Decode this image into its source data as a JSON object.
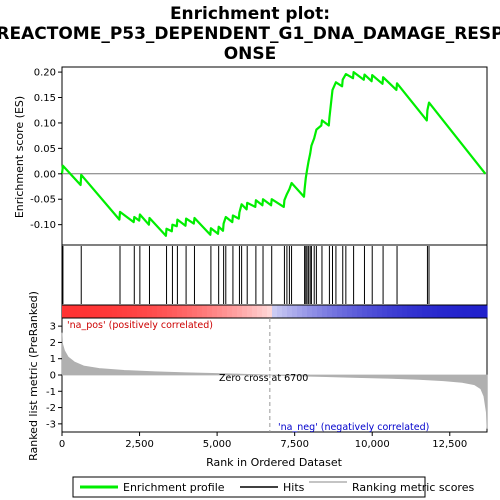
{
  "chart_data": {
    "type": "line",
    "title_lines": [
      "Enrichment plot:",
      "REACTOME_P53_DEPENDENT_G1_DNA_DAMAGE_RESP",
      "ONSE"
    ],
    "xlabel": "Rank in Ordered Dataset",
    "ylabel_top": "Enrichment score (ES)",
    "ylabel_bottom": "Ranked list metric (PreRanked)",
    "xlim": [
      0,
      13700
    ],
    "ylim_top": [
      -0.14,
      0.21
    ],
    "ylim_bottom": [
      -3.5,
      3.5
    ],
    "x_ticks": [
      0,
      2500,
      5000,
      7500,
      10000,
      12500
    ],
    "x_tick_labels": [
      "0",
      "2,500",
      "5,000",
      "7,500",
      "10,000",
      "12,500"
    ],
    "y_ticks_top": [
      -0.1,
      -0.05,
      0.0,
      0.05,
      0.1,
      0.15,
      0.2
    ],
    "y_tick_labels_top": [
      "-0.10",
      "-0.05",
      "0.00",
      "0.05",
      "0.10",
      "0.15",
      "0.20"
    ],
    "y_ticks_bottom": [
      -3,
      -2,
      -1,
      0,
      1,
      2,
      3
    ],
    "y_tick_labels_bottom": [
      "-3",
      "-2",
      "-1",
      "0",
      "1",
      "2",
      "3"
    ],
    "zero_cross": 6700,
    "zero_cross_label": "Zero cross at 6700",
    "pos_label": "'na_pos' (positively correlated)",
    "neg_label": "'na_neg' (negatively correlated)",
    "hits": [
      30,
      620,
      1870,
      2330,
      2510,
      2820,
      3370,
      3560,
      3720,
      4000,
      4270,
      4800,
      5050,
      5210,
      5280,
      5510,
      5720,
      5790,
      5970,
      6250,
      6480,
      6760,
      7170,
      7250,
      7330,
      7400,
      7820,
      7860,
      7900,
      7950,
      8000,
      8040,
      8130,
      8200,
      8380,
      8620,
      8720,
      8830,
      9050,
      9150,
      9400,
      9750,
      10000,
      10350,
      10800,
      11780,
      11830
    ],
    "es_curve": [
      [
        0,
        0.0
      ],
      [
        30,
        0.016
      ],
      [
        600,
        -0.022
      ],
      [
        620,
        -0.002
      ],
      [
        1850,
        -0.09
      ],
      [
        1870,
        -0.075
      ],
      [
        2310,
        -0.095
      ],
      [
        2330,
        -0.085
      ],
      [
        2490,
        -0.092
      ],
      [
        2510,
        -0.08
      ],
      [
        2800,
        -0.1
      ],
      [
        2820,
        -0.087
      ],
      [
        3350,
        -0.122
      ],
      [
        3370,
        -0.108
      ],
      [
        3540,
        -0.113
      ],
      [
        3560,
        -0.1
      ],
      [
        3700,
        -0.103
      ],
      [
        3720,
        -0.09
      ],
      [
        3980,
        -0.102
      ],
      [
        4000,
        -0.088
      ],
      [
        4250,
        -0.098
      ],
      [
        4270,
        -0.087
      ],
      [
        4780,
        -0.12
      ],
      [
        4800,
        -0.107
      ],
      [
        5030,
        -0.118
      ],
      [
        5050,
        -0.104
      ],
      [
        5190,
        -0.112
      ],
      [
        5210,
        -0.098
      ],
      [
        5280,
        -0.085
      ],
      [
        5490,
        -0.095
      ],
      [
        5510,
        -0.082
      ],
      [
        5700,
        -0.088
      ],
      [
        5720,
        -0.076
      ],
      [
        5790,
        -0.06
      ],
      [
        5950,
        -0.07
      ],
      [
        5970,
        -0.057
      ],
      [
        6230,
        -0.065
      ],
      [
        6250,
        -0.052
      ],
      [
        6460,
        -0.062
      ],
      [
        6480,
        -0.05
      ],
      [
        6740,
        -0.062
      ],
      [
        6760,
        -0.05
      ],
      [
        7150,
        -0.065
      ],
      [
        7170,
        -0.052
      ],
      [
        7250,
        -0.04
      ],
      [
        7330,
        -0.03
      ],
      [
        7400,
        -0.018
      ],
      [
        7800,
        -0.045
      ],
      [
        7820,
        -0.03
      ],
      [
        7860,
        -0.008
      ],
      [
        7900,
        0.008
      ],
      [
        7950,
        0.025
      ],
      [
        8000,
        0.04
      ],
      [
        8040,
        0.055
      ],
      [
        8130,
        0.07
      ],
      [
        8200,
        0.087
      ],
      [
        8360,
        0.095
      ],
      [
        8380,
        0.105
      ],
      [
        8600,
        0.095
      ],
      [
        8620,
        0.11
      ],
      [
        8720,
        0.165
      ],
      [
        8830,
        0.18
      ],
      [
        9030,
        0.172
      ],
      [
        9050,
        0.185
      ],
      [
        9150,
        0.196
      ],
      [
        9380,
        0.188
      ],
      [
        9400,
        0.2
      ],
      [
        9730,
        0.185
      ],
      [
        9750,
        0.195
      ],
      [
        9980,
        0.182
      ],
      [
        10000,
        0.194
      ],
      [
        10330,
        0.177
      ],
      [
        10350,
        0.19
      ],
      [
        10780,
        0.165
      ],
      [
        10800,
        0.178
      ],
      [
        11760,
        0.105
      ],
      [
        11780,
        0.125
      ],
      [
        11830,
        0.14
      ],
      [
        13650,
        0.0
      ]
    ],
    "metric_points": [
      [
        0,
        2.6
      ],
      [
        20,
        1.9
      ],
      [
        80,
        1.5
      ],
      [
        200,
        1.1
      ],
      [
        400,
        0.8
      ],
      [
        700,
        0.55
      ],
      [
        1200,
        0.4
      ],
      [
        2000,
        0.28
      ],
      [
        3000,
        0.2
      ],
      [
        4000,
        0.14
      ],
      [
        5000,
        0.09
      ],
      [
        6000,
        0.04
      ],
      [
        6700,
        0.0
      ],
      [
        7500,
        -0.05
      ],
      [
        8500,
        -0.1
      ],
      [
        9500,
        -0.15
      ],
      [
        10500,
        -0.2
      ],
      [
        11500,
        -0.27
      ],
      [
        12300,
        -0.35
      ],
      [
        12900,
        -0.45
      ],
      [
        13300,
        -0.6
      ],
      [
        13500,
        -0.85
      ],
      [
        13600,
        -1.3
      ],
      [
        13680,
        -2.3
      ],
      [
        13700,
        -3.3
      ]
    ],
    "legend": [
      "Enrichment profile",
      "Hits",
      "Ranking metric scores"
    ],
    "colors": {
      "es_line": "#00ee00",
      "hit": "#000000",
      "metric": "#b0b0b0",
      "pos_text": "#cc0000",
      "neg_text": "#0000cc",
      "zero_line": "#999999",
      "band_pos": "#ff3333",
      "band_neg": "#2222cc"
    }
  }
}
